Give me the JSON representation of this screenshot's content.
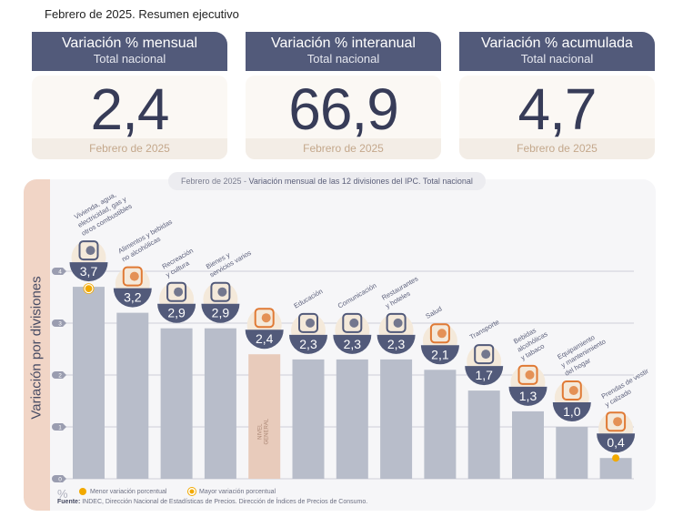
{
  "page_title": "Febrero de 2025. Resumen ejecutivo",
  "kpis": [
    {
      "title": "Variación % mensual",
      "subtitle": "Total nacional",
      "value": "2,4",
      "date": "Febrero de 2025"
    },
    {
      "title": "Variación % interanual",
      "subtitle": "Total nacional",
      "value": "66,9",
      "date": "Febrero de 2025"
    },
    {
      "title": "Variación % acumulada",
      "subtitle": "Total nacional",
      "value": "4,7",
      "date": "Febrero de 2025"
    }
  ],
  "chart_data": {
    "type": "bar",
    "title_date": "Febrero de 2025",
    "title_sep": " - ",
    "title": "Variación mensual de las 12 divisiones del IPC. Total nacional",
    "ylabel": "Variación por divisiones",
    "unit_label": "%",
    "ylim": [
      0,
      4
    ],
    "yticks": [
      "0",
      "1",
      "2",
      "3",
      "4"
    ],
    "grid": true,
    "categories": [
      "Vivienda, agua, electricidad, gas y otros combustibles",
      "Alimentos y bebidas no alcohólicas",
      "Recreación y cultura",
      "Bienes y servicios varios",
      "Nivel general",
      "Educación",
      "Comunicación",
      "Restaurantes y hoteles",
      "Salud",
      "Transporte",
      "Bebidas alcohólicas y tabaco",
      "Equipamiento y mantenimiento del hogar",
      "Prendas de vestir y calzado"
    ],
    "label_lines": [
      [
        "Vivienda, agua,",
        "electricidad, gas y",
        "otros combustibles"
      ],
      [
        "Alimentos y bebidas",
        "no alcohólicas"
      ],
      [
        "Recreación",
        "y cultura"
      ],
      [
        "Bienes y",
        "servicios varios"
      ],
      [],
      [
        "Educación"
      ],
      [
        "Comunicación"
      ],
      [
        "Restaurantes",
        "y hoteles"
      ],
      [
        "Salud"
      ],
      [
        "Transporte"
      ],
      [
        "Bebidas",
        "alcohólicas",
        "y tabaco"
      ],
      [
        "Equipamiento",
        "y mantenimiento",
        "del hogar"
      ],
      [
        "Prendas de vestir",
        "y calzado"
      ]
    ],
    "values": [
      3.7,
      3.2,
      2.9,
      2.9,
      2.4,
      2.3,
      2.3,
      2.3,
      2.1,
      1.7,
      1.3,
      1.0,
      0.4
    ],
    "value_labels": [
      "3,7",
      "3,2",
      "2,9",
      "2,9",
      "2,4",
      "2,3",
      "2,3",
      "2,3",
      "2,1",
      "1,7",
      "1,3",
      "1,0",
      "0,4"
    ],
    "icons": [
      "house-utilities-icon",
      "food-icon",
      "recreation-icon",
      "grooming-icon",
      "shopping-bag-icon",
      "notebook-icon",
      "phone-icon",
      "plate-cutlery-icon",
      "first-aid-icon",
      "bus-icon",
      "bottle-icon",
      "appliance-icon",
      "clothes-icon"
    ],
    "highlight_index": 4,
    "highlight_label_lines": [
      "NIVEL",
      "GENERAL"
    ],
    "max_index": 0,
    "min_index": 12,
    "colors": {
      "bar": "#b8bdca",
      "highlight": "#e8cbbb",
      "badge": "#525a7a",
      "icon_orange": "#e07a35",
      "marker": "#f2a900"
    },
    "legend": [
      {
        "label": "Menor variación porcentual",
        "marker": "filled-dot"
      },
      {
        "label": "Mayor variación porcentual",
        "marker": "ringed-dot"
      }
    ],
    "source_bold": "Fuente:",
    "source": " INDEC, Dirección Nacional de Estadísticas de Precios. Dirección de Índices de Precios de Consumo."
  }
}
